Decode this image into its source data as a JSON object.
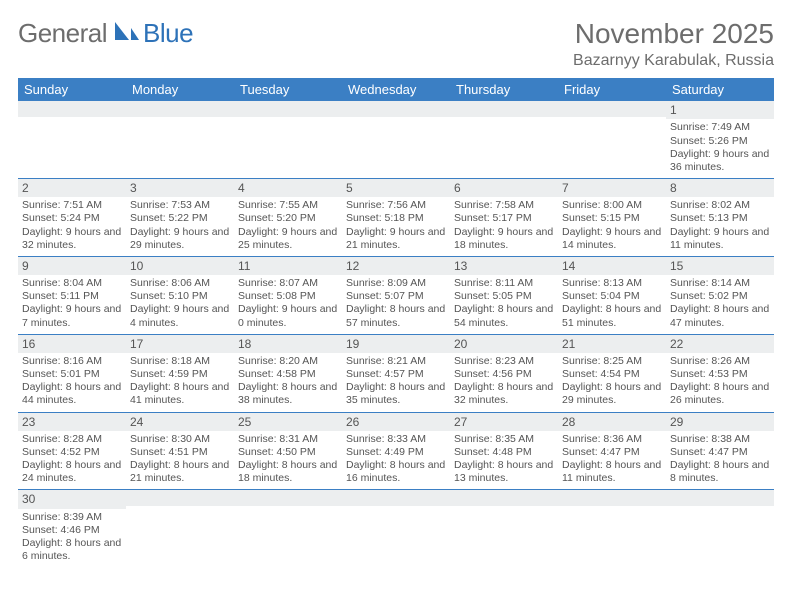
{
  "logo": {
    "text1": "General",
    "text2": "Blue",
    "color1": "#6d6d6d",
    "color2": "#2d72b8"
  },
  "header": {
    "month_title": "November 2025",
    "location": "Bazarnyy Karabulak, Russia"
  },
  "colors": {
    "header_bg": "#3b7fc4",
    "header_text": "#ffffff",
    "daynum_bg": "#eceeef",
    "border": "#3b7fc4",
    "body_text": "#555555"
  },
  "day_headers": [
    "Sunday",
    "Monday",
    "Tuesday",
    "Wednesday",
    "Thursday",
    "Friday",
    "Saturday"
  ],
  "weeks": [
    [
      {
        "n": "",
        "sr": "",
        "ss": "",
        "dl": ""
      },
      {
        "n": "",
        "sr": "",
        "ss": "",
        "dl": ""
      },
      {
        "n": "",
        "sr": "",
        "ss": "",
        "dl": ""
      },
      {
        "n": "",
        "sr": "",
        "ss": "",
        "dl": ""
      },
      {
        "n": "",
        "sr": "",
        "ss": "",
        "dl": ""
      },
      {
        "n": "",
        "sr": "",
        "ss": "",
        "dl": ""
      },
      {
        "n": "1",
        "sr": "Sunrise: 7:49 AM",
        "ss": "Sunset: 5:26 PM",
        "dl": "Daylight: 9 hours and 36 minutes."
      }
    ],
    [
      {
        "n": "2",
        "sr": "Sunrise: 7:51 AM",
        "ss": "Sunset: 5:24 PM",
        "dl": "Daylight: 9 hours and 32 minutes."
      },
      {
        "n": "3",
        "sr": "Sunrise: 7:53 AM",
        "ss": "Sunset: 5:22 PM",
        "dl": "Daylight: 9 hours and 29 minutes."
      },
      {
        "n": "4",
        "sr": "Sunrise: 7:55 AM",
        "ss": "Sunset: 5:20 PM",
        "dl": "Daylight: 9 hours and 25 minutes."
      },
      {
        "n": "5",
        "sr": "Sunrise: 7:56 AM",
        "ss": "Sunset: 5:18 PM",
        "dl": "Daylight: 9 hours and 21 minutes."
      },
      {
        "n": "6",
        "sr": "Sunrise: 7:58 AM",
        "ss": "Sunset: 5:17 PM",
        "dl": "Daylight: 9 hours and 18 minutes."
      },
      {
        "n": "7",
        "sr": "Sunrise: 8:00 AM",
        "ss": "Sunset: 5:15 PM",
        "dl": "Daylight: 9 hours and 14 minutes."
      },
      {
        "n": "8",
        "sr": "Sunrise: 8:02 AM",
        "ss": "Sunset: 5:13 PM",
        "dl": "Daylight: 9 hours and 11 minutes."
      }
    ],
    [
      {
        "n": "9",
        "sr": "Sunrise: 8:04 AM",
        "ss": "Sunset: 5:11 PM",
        "dl": "Daylight: 9 hours and 7 minutes."
      },
      {
        "n": "10",
        "sr": "Sunrise: 8:06 AM",
        "ss": "Sunset: 5:10 PM",
        "dl": "Daylight: 9 hours and 4 minutes."
      },
      {
        "n": "11",
        "sr": "Sunrise: 8:07 AM",
        "ss": "Sunset: 5:08 PM",
        "dl": "Daylight: 9 hours and 0 minutes."
      },
      {
        "n": "12",
        "sr": "Sunrise: 8:09 AM",
        "ss": "Sunset: 5:07 PM",
        "dl": "Daylight: 8 hours and 57 minutes."
      },
      {
        "n": "13",
        "sr": "Sunrise: 8:11 AM",
        "ss": "Sunset: 5:05 PM",
        "dl": "Daylight: 8 hours and 54 minutes."
      },
      {
        "n": "14",
        "sr": "Sunrise: 8:13 AM",
        "ss": "Sunset: 5:04 PM",
        "dl": "Daylight: 8 hours and 51 minutes."
      },
      {
        "n": "15",
        "sr": "Sunrise: 8:14 AM",
        "ss": "Sunset: 5:02 PM",
        "dl": "Daylight: 8 hours and 47 minutes."
      }
    ],
    [
      {
        "n": "16",
        "sr": "Sunrise: 8:16 AM",
        "ss": "Sunset: 5:01 PM",
        "dl": "Daylight: 8 hours and 44 minutes."
      },
      {
        "n": "17",
        "sr": "Sunrise: 8:18 AM",
        "ss": "Sunset: 4:59 PM",
        "dl": "Daylight: 8 hours and 41 minutes."
      },
      {
        "n": "18",
        "sr": "Sunrise: 8:20 AM",
        "ss": "Sunset: 4:58 PM",
        "dl": "Daylight: 8 hours and 38 minutes."
      },
      {
        "n": "19",
        "sr": "Sunrise: 8:21 AM",
        "ss": "Sunset: 4:57 PM",
        "dl": "Daylight: 8 hours and 35 minutes."
      },
      {
        "n": "20",
        "sr": "Sunrise: 8:23 AM",
        "ss": "Sunset: 4:56 PM",
        "dl": "Daylight: 8 hours and 32 minutes."
      },
      {
        "n": "21",
        "sr": "Sunrise: 8:25 AM",
        "ss": "Sunset: 4:54 PM",
        "dl": "Daylight: 8 hours and 29 minutes."
      },
      {
        "n": "22",
        "sr": "Sunrise: 8:26 AM",
        "ss": "Sunset: 4:53 PM",
        "dl": "Daylight: 8 hours and 26 minutes."
      }
    ],
    [
      {
        "n": "23",
        "sr": "Sunrise: 8:28 AM",
        "ss": "Sunset: 4:52 PM",
        "dl": "Daylight: 8 hours and 24 minutes."
      },
      {
        "n": "24",
        "sr": "Sunrise: 8:30 AM",
        "ss": "Sunset: 4:51 PM",
        "dl": "Daylight: 8 hours and 21 minutes."
      },
      {
        "n": "25",
        "sr": "Sunrise: 8:31 AM",
        "ss": "Sunset: 4:50 PM",
        "dl": "Daylight: 8 hours and 18 minutes."
      },
      {
        "n": "26",
        "sr": "Sunrise: 8:33 AM",
        "ss": "Sunset: 4:49 PM",
        "dl": "Daylight: 8 hours and 16 minutes."
      },
      {
        "n": "27",
        "sr": "Sunrise: 8:35 AM",
        "ss": "Sunset: 4:48 PM",
        "dl": "Daylight: 8 hours and 13 minutes."
      },
      {
        "n": "28",
        "sr": "Sunrise: 8:36 AM",
        "ss": "Sunset: 4:47 PM",
        "dl": "Daylight: 8 hours and 11 minutes."
      },
      {
        "n": "29",
        "sr": "Sunrise: 8:38 AM",
        "ss": "Sunset: 4:47 PM",
        "dl": "Daylight: 8 hours and 8 minutes."
      }
    ],
    [
      {
        "n": "30",
        "sr": "Sunrise: 8:39 AM",
        "ss": "Sunset: 4:46 PM",
        "dl": "Daylight: 8 hours and 6 minutes."
      },
      {
        "n": "",
        "sr": "",
        "ss": "",
        "dl": ""
      },
      {
        "n": "",
        "sr": "",
        "ss": "",
        "dl": ""
      },
      {
        "n": "",
        "sr": "",
        "ss": "",
        "dl": ""
      },
      {
        "n": "",
        "sr": "",
        "ss": "",
        "dl": ""
      },
      {
        "n": "",
        "sr": "",
        "ss": "",
        "dl": ""
      },
      {
        "n": "",
        "sr": "",
        "ss": "",
        "dl": ""
      }
    ]
  ]
}
